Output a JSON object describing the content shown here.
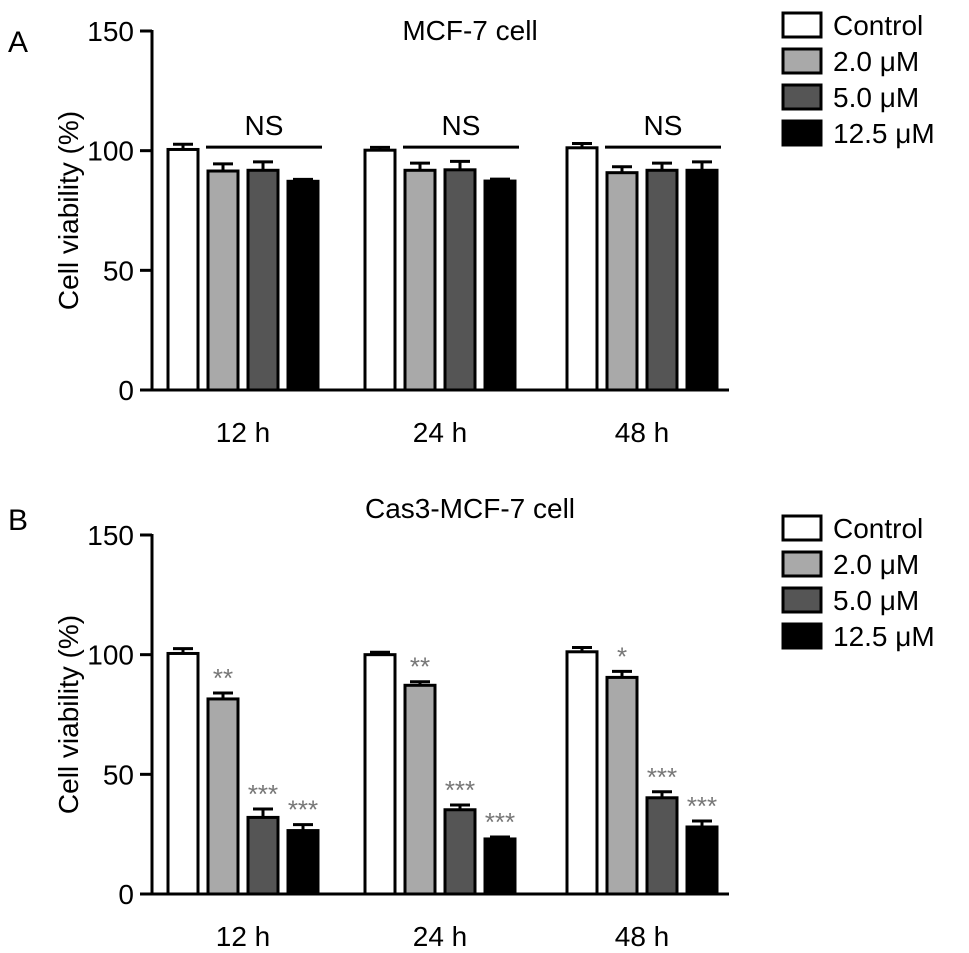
{
  "series_colors": {
    "Control": "#ffffff",
    "2.0 μM": "#a9a9a9",
    "5.0 μM": "#555555",
    "12.5 μM": "#000000"
  },
  "significance_color": "#777777",
  "chart_data": [
    {
      "type": "bar",
      "panel_label": "A",
      "title": "MCF-7 cell",
      "ylabel": "Cell viability (%)",
      "xlabel": "",
      "ylim": [
        0,
        150
      ],
      "yticks": [
        "0",
        "50",
        "100",
        "150"
      ],
      "categories": [
        "12 h",
        "24 h",
        "48 h"
      ],
      "legend_placement": "top-right",
      "series": [
        {
          "name": "Control",
          "values": [
            100.5,
            100.2,
            101.2
          ],
          "errors": [
            2.2,
            1.2,
            1.8
          ],
          "labels": [
            "",
            "",
            ""
          ]
        },
        {
          "name": "2.0 μM",
          "values": [
            91.5,
            91.8,
            90.8
          ],
          "errors": [
            3.0,
            3.0,
            2.5
          ],
          "labels": [
            "",
            "",
            ""
          ]
        },
        {
          "name": "5.0 μM",
          "values": [
            91.8,
            92.0,
            91.8
          ],
          "errors": [
            3.5,
            3.5,
            3.0
          ],
          "labels": [
            "",
            "",
            ""
          ]
        },
        {
          "name": "12.5 μM",
          "values": [
            87.2,
            87.3,
            91.8
          ],
          "errors": [
            0.8,
            0.8,
            3.5
          ],
          "labels": [
            "",
            "",
            ""
          ]
        }
      ],
      "group_annotations": [
        "NS",
        "NS",
        "NS"
      ]
    },
    {
      "type": "bar",
      "panel_label": "B",
      "title": "Cas3-MCF-7 cell",
      "ylabel": "Cell viability (%)",
      "xlabel": "",
      "ylim": [
        0,
        150
      ],
      "yticks": [
        "0",
        "50",
        "100",
        "150"
      ],
      "categories": [
        "12 h",
        "24 h",
        "48 h"
      ],
      "legend_placement": "top-right",
      "series": [
        {
          "name": "Control",
          "values": [
            100.5,
            100.0,
            101.2
          ],
          "errors": [
            2.0,
            1.0,
            1.8
          ],
          "labels": [
            "",
            "",
            ""
          ]
        },
        {
          "name": "2.0 μM",
          "values": [
            81.5,
            87.2,
            90.5
          ],
          "errors": [
            2.5,
            1.5,
            2.5
          ],
          "labels": [
            "**",
            "**",
            "*"
          ]
        },
        {
          "name": "5.0 μM",
          "values": [
            32.0,
            35.2,
            40.2
          ],
          "errors": [
            3.5,
            2.0,
            2.5
          ],
          "labels": [
            "***",
            "***",
            "***"
          ]
        },
        {
          "name": "12.5 μM",
          "values": [
            26.5,
            23.0,
            28.0
          ],
          "errors": [
            2.5,
            0.8,
            2.5
          ],
          "labels": [
            "***",
            "***",
            "***"
          ]
        }
      ],
      "group_annotations": [
        "",
        "",
        ""
      ]
    }
  ]
}
